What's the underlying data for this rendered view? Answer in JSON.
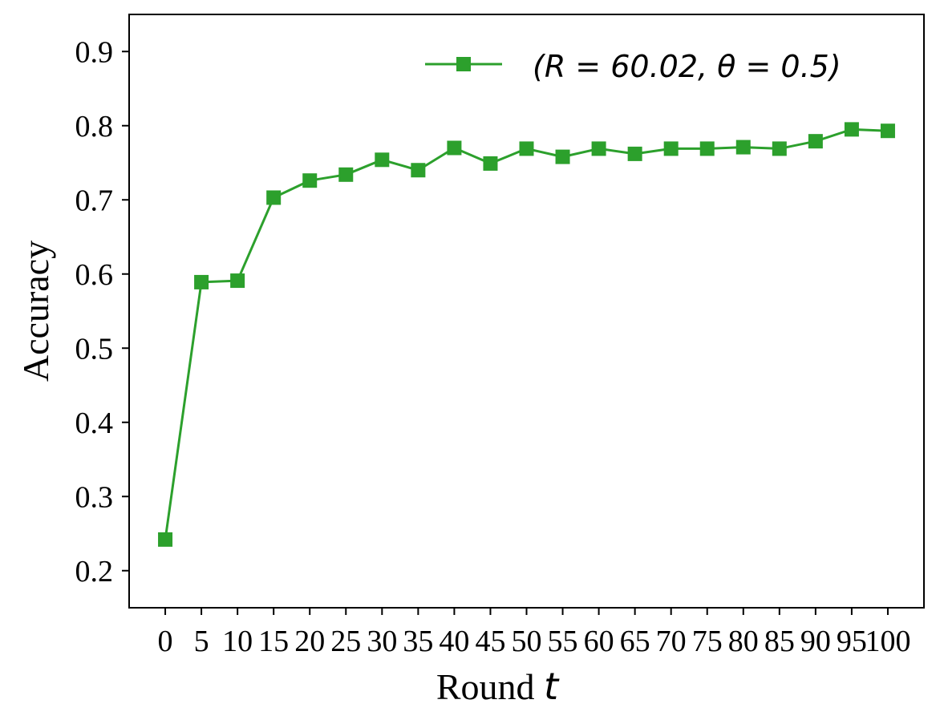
{
  "chart_data": {
    "type": "line",
    "xlabel": "Round",
    "xlabel_var": "t",
    "ylabel": "Accuracy",
    "xlim": [
      -5,
      105
    ],
    "ylim": [
      0.15,
      0.95
    ],
    "x_ticks": [
      0,
      5,
      10,
      15,
      20,
      25,
      30,
      35,
      40,
      45,
      50,
      55,
      60,
      65,
      70,
      75,
      80,
      85,
      90,
      95,
      100
    ],
    "x_tick_labels": [
      "0",
      "5",
      "10",
      "15",
      "20",
      "25",
      "30",
      "35",
      "40",
      "45",
      "50",
      "55",
      "60",
      "65",
      "70",
      "75",
      "80",
      "85",
      "90",
      "95",
      "100"
    ],
    "y_ticks": [
      0.2,
      0.3,
      0.4,
      0.5,
      0.6,
      0.7,
      0.8,
      0.9
    ],
    "y_tick_labels": [
      "0.2",
      "0.3",
      "0.4",
      "0.5",
      "0.6",
      "0.7",
      "0.8",
      "0.9"
    ],
    "grid": false,
    "legend_position": "top-right",
    "series": [
      {
        "name": "(R = 60.02, θ = 0.5)",
        "color": "#2ca02c",
        "marker": "square",
        "x": [
          0,
          5,
          10,
          15,
          20,
          25,
          30,
          35,
          40,
          45,
          50,
          55,
          60,
          65,
          70,
          75,
          80,
          85,
          90,
          95,
          100
        ],
        "values": [
          0.242,
          0.589,
          0.591,
          0.703,
          0.726,
          0.734,
          0.754,
          0.74,
          0.77,
          0.749,
          0.769,
          0.758,
          0.769,
          0.762,
          0.769,
          0.769,
          0.771,
          0.769,
          0.779,
          0.795,
          0.793
        ]
      }
    ]
  }
}
